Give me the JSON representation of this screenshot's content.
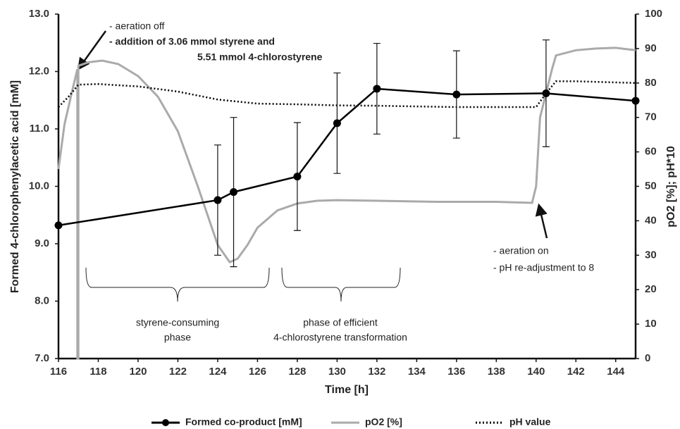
{
  "chart_data": {
    "type": "line",
    "xlabel": "Time [h]",
    "ylabel": "Formed 4-chlorophenylacetic acid [mM]",
    "y2label": "pO2 [%]; pH*10",
    "xlim": [
      116,
      145
    ],
    "xticks": [
      116,
      118,
      120,
      122,
      124,
      126,
      128,
      130,
      132,
      134,
      136,
      138,
      140,
      142,
      144
    ],
    "ylim": [
      7,
      13
    ],
    "yticks": [
      {
        "value": 7,
        "label": "7.0"
      },
      {
        "value": 8,
        "label": "8.0"
      },
      {
        "value": 9,
        "label": "9.0"
      },
      {
        "value": 10,
        "label": "10.0"
      },
      {
        "value": 11,
        "label": "11.0"
      },
      {
        "value": 12,
        "label": "12.0"
      },
      {
        "value": 13,
        "label": "13.0"
      }
    ],
    "y2lim": [
      0,
      100
    ],
    "y2ticks": [
      0,
      10,
      20,
      30,
      40,
      50,
      60,
      70,
      80,
      90,
      100
    ],
    "grid": false,
    "legend": "bottom",
    "series": [
      {
        "name": "Formed co-product [mM]",
        "color": "#000000",
        "marker": "circle",
        "dash": "solid",
        "x": [
          116,
          124,
          124.8,
          128,
          130,
          132,
          136,
          140.5,
          145
        ],
        "values": [
          9.32,
          9.76,
          9.9,
          10.17,
          11.1,
          11.7,
          11.6,
          11.62,
          11.49
        ],
        "errors": [
          null,
          0.96,
          1.3,
          0.94,
          0.875,
          0.79,
          0.76,
          0.93,
          null
        ]
      },
      {
        "name": "pO2 [%]",
        "color": "#aaaaaa",
        "axis": "y2",
        "dash": "solid",
        "x": [
          116,
          116.3,
          116.7,
          116.95,
          116.95,
          117.0,
          117.0,
          117.5,
          118.2,
          119,
          120,
          121,
          122,
          123,
          124,
          124.6,
          125,
          125.5,
          126,
          127,
          128,
          129,
          130,
          132,
          135,
          138,
          139.8,
          140,
          140.2,
          140.5,
          140.8,
          141,
          142,
          143,
          144,
          145
        ],
        "values": [
          55,
          68,
          78,
          84,
          0,
          0,
          85,
          86,
          86.5,
          85.5,
          82,
          76,
          66,
          50,
          33,
          28,
          29,
          33,
          38,
          43,
          45,
          45.8,
          46,
          45.8,
          45.5,
          45.5,
          45.2,
          50,
          70,
          77,
          84,
          88,
          89.5,
          90,
          90.2,
          89.5
        ]
      },
      {
        "name": "pH value",
        "color": "#000000",
        "axis": "y2",
        "dash": "dotted",
        "x": [
          116,
          116.5,
          117,
          118,
          120,
          122,
          124,
          126,
          128,
          130,
          132,
          134,
          136,
          138,
          140,
          140.5,
          141,
          142,
          145
        ],
        "values": [
          73,
          76,
          79.5,
          79.7,
          79,
          77.5,
          75.2,
          74,
          73.8,
          73.5,
          73.4,
          73.2,
          73,
          73,
          73,
          77,
          80.5,
          80.5,
          80
        ]
      }
    ],
    "annotations": [
      "- aeration off",
      "- addition of 3.06 mmol styrene and",
      "5.51 mmol 4-chlorostyrene",
      "- aeration on",
      "- pH re-adjustment to 8",
      "styrene-consuming",
      "phase",
      "phase of efficient",
      "4-chlorostyrene transformation"
    ]
  }
}
